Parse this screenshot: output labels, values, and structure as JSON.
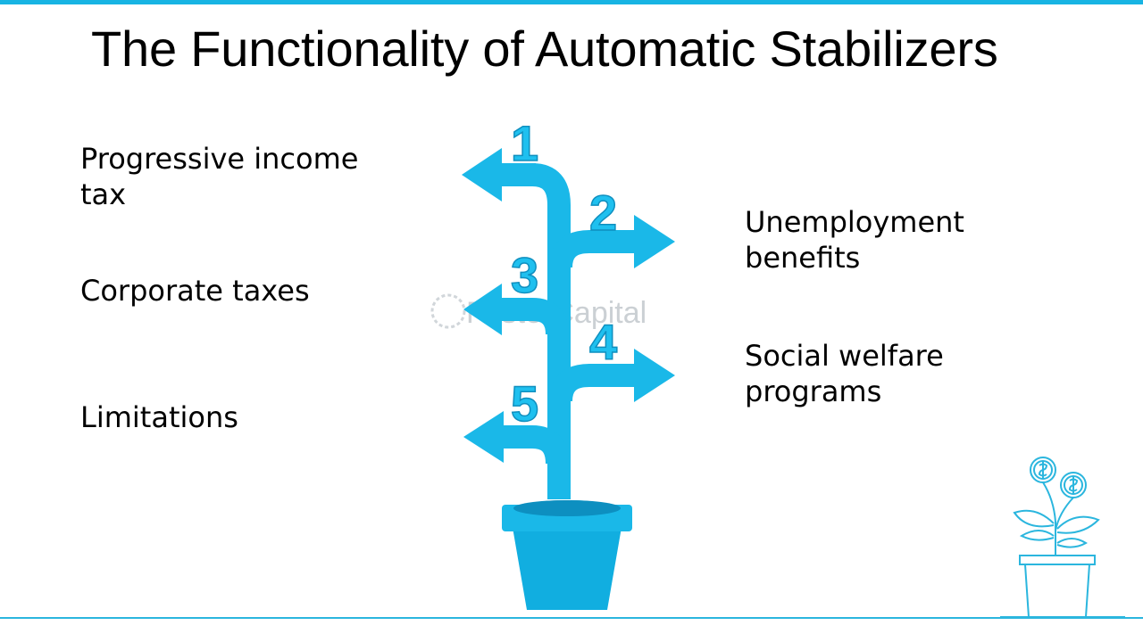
{
  "title": "The Functionality of Automatic Stabilizers",
  "items": [
    {
      "number": "1",
      "label": "Progressive income tax"
    },
    {
      "number": "2",
      "label": "Unemployment benefits"
    },
    {
      "number": "3",
      "label": "Corporate taxes"
    },
    {
      "number": "4",
      "label": "Social welfare programs"
    },
    {
      "number": "5",
      "label": "Limitations"
    }
  ],
  "watermark": "FasterCapital",
  "colors": {
    "accent": "#18b4e3",
    "plant": "#1ab8e8",
    "pot": "#11aee0",
    "text": "#000000"
  },
  "icons": {
    "decoration": "money-plant-icon"
  }
}
